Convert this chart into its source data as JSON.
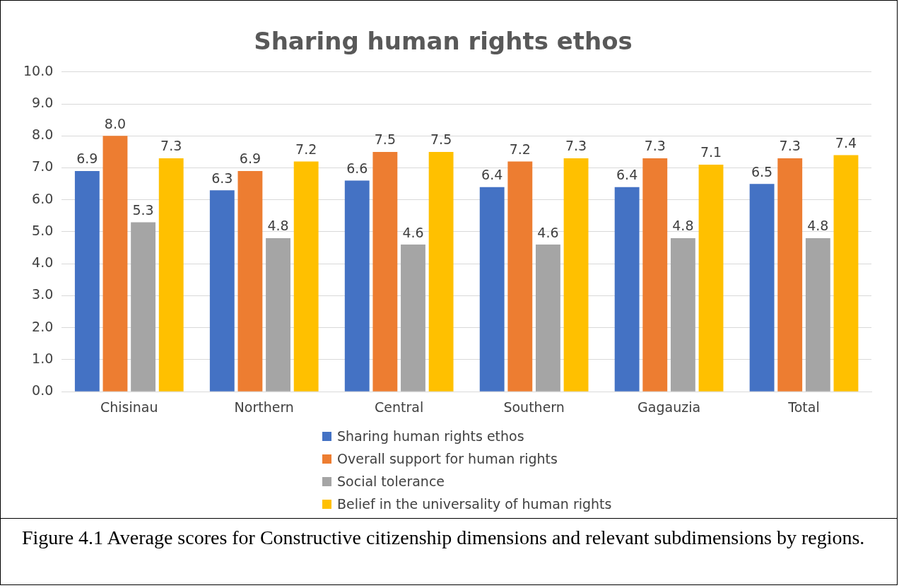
{
  "chart_data": {
    "type": "bar",
    "title": "Sharing human rights ethos",
    "categories": [
      "Chisinau",
      "Northern",
      "Central",
      "Southern",
      "Gagauzia",
      "Total"
    ],
    "series": [
      {
        "name": "Sharing human rights ethos",
        "color": "#4472c4",
        "values": [
          6.9,
          6.3,
          6.6,
          6.4,
          6.4,
          6.5
        ],
        "value_labels": [
          "6.9",
          "6.3",
          "6.6",
          "6.4",
          "6.4",
          "6.5"
        ]
      },
      {
        "name": "Overall support for human rights",
        "color": "#ed7d31",
        "values": [
          8.0,
          6.9,
          7.5,
          7.2,
          7.3,
          7.3
        ],
        "value_labels": [
          "8.0",
          "6.9",
          "7.5",
          "7.2",
          "7.3",
          "7.3"
        ]
      },
      {
        "name": "Social tolerance",
        "color": "#a5a5a5",
        "values": [
          5.3,
          4.8,
          4.6,
          4.6,
          4.8,
          4.8
        ],
        "value_labels": [
          "5.3",
          "4.8",
          "4.6",
          "4.6",
          "4.8",
          "4.8"
        ]
      },
      {
        "name": "Belief in the universality of human rights",
        "color": "#ffc000",
        "values": [
          7.3,
          7.2,
          7.5,
          7.3,
          7.1,
          7.4
        ],
        "value_labels": [
          "7.3",
          "7.2",
          "7.5",
          "7.3",
          "7.1",
          "7.4"
        ]
      }
    ],
    "ylim": [
      0,
      10
    ],
    "yticks": [
      {
        "value": 0,
        "label": "0.0"
      },
      {
        "value": 1,
        "label": "1.0"
      },
      {
        "value": 2,
        "label": "2.0"
      },
      {
        "value": 3,
        "label": "3.0"
      },
      {
        "value": 4,
        "label": "4.0"
      },
      {
        "value": 5,
        "label": "5.0"
      },
      {
        "value": 6,
        "label": "6.0"
      },
      {
        "value": 7,
        "label": "7.0"
      },
      {
        "value": 8,
        "label": "8.0"
      },
      {
        "value": 9,
        "label": "9.0"
      },
      {
        "value": 10,
        "label": "10.0"
      }
    ],
    "grid": "y",
    "legend": "bottom",
    "annotations": [
      "Figure 4.1 Average scores for Constructive citizenship dimensions and relevant subdimensions by regions."
    ]
  }
}
